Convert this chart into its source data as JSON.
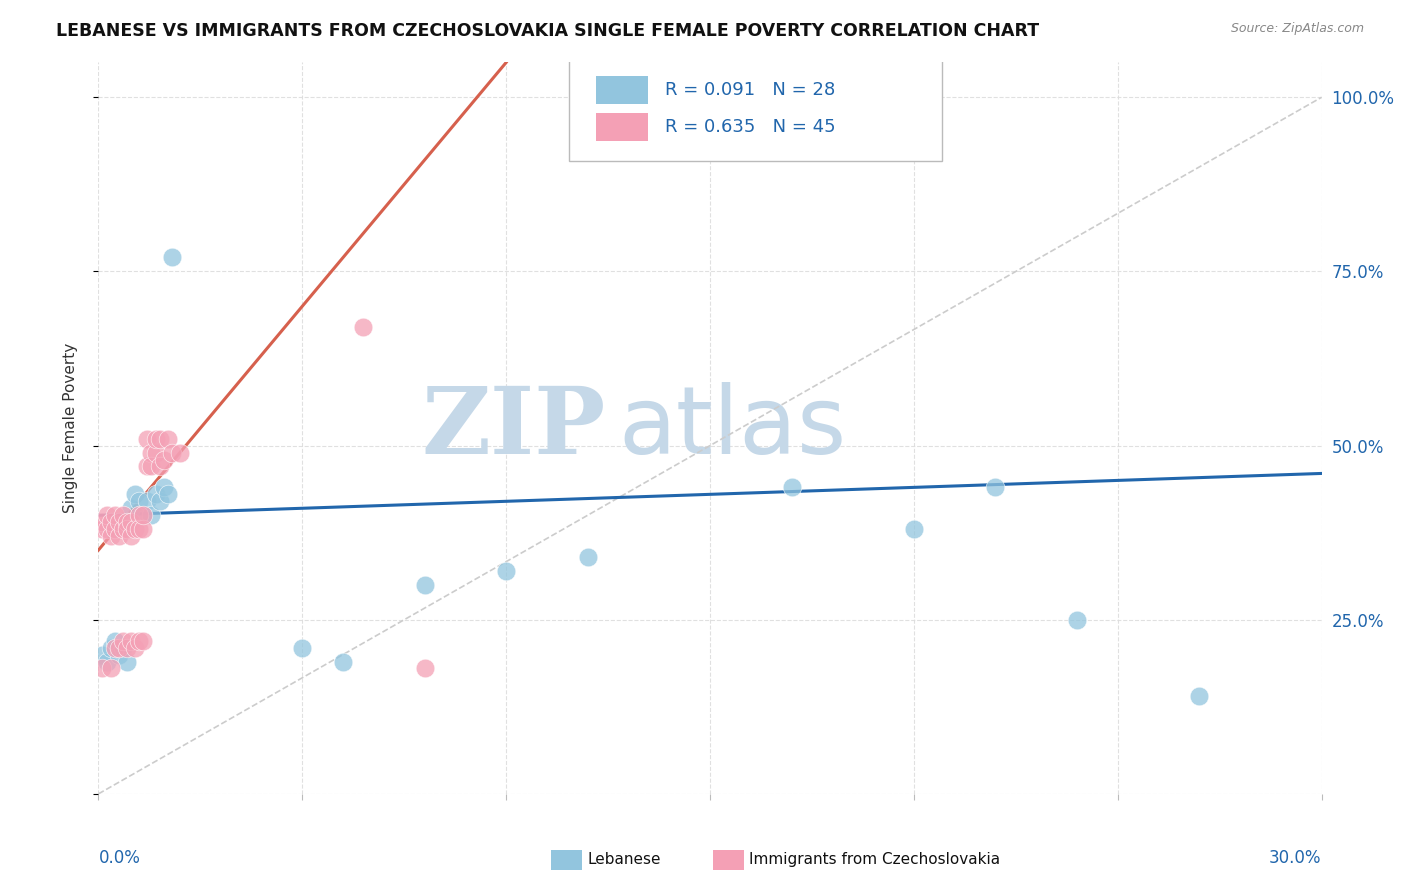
{
  "title": "LEBANESE VS IMMIGRANTS FROM CZECHOSLOVAKIA SINGLE FEMALE POVERTY CORRELATION CHART",
  "source": "Source: ZipAtlas.com",
  "ylabel": "Single Female Poverty",
  "R1": 0.091,
  "N1": 28,
  "R2": 0.635,
  "N2": 45,
  "color_blue": "#92c5de",
  "color_pink": "#f4a0b5",
  "color_blue_line": "#2166ac",
  "color_pink_line": "#d6604d",
  "color_ref_line": "#cccccc",
  "legend_label1": "Lebanese",
  "legend_label2": "Immigrants from Czechoslovakia",
  "xlim": [
    0.0,
    0.3
  ],
  "ylim": [
    0.0,
    1.05
  ],
  "blue_x": [
    0.001,
    0.002,
    0.003,
    0.004,
    0.005,
    0.006,
    0.007,
    0.008,
    0.009,
    0.01,
    0.011,
    0.012,
    0.013,
    0.014,
    0.015,
    0.016,
    0.017,
    0.018,
    0.05,
    0.06,
    0.08,
    0.1,
    0.12,
    0.17,
    0.2,
    0.22,
    0.24,
    0.27
  ],
  "blue_y": [
    0.2,
    0.19,
    0.21,
    0.22,
    0.2,
    0.21,
    0.19,
    0.41,
    0.43,
    0.42,
    0.4,
    0.42,
    0.4,
    0.43,
    0.42,
    0.44,
    0.43,
    0.77,
    0.21,
    0.19,
    0.3,
    0.32,
    0.34,
    0.44,
    0.38,
    0.44,
    0.25,
    0.14
  ],
  "pink_x": [
    0.001,
    0.001,
    0.001,
    0.002,
    0.002,
    0.003,
    0.003,
    0.003,
    0.004,
    0.004,
    0.004,
    0.005,
    0.005,
    0.005,
    0.006,
    0.006,
    0.006,
    0.007,
    0.007,
    0.007,
    0.008,
    0.008,
    0.008,
    0.009,
    0.009,
    0.01,
    0.01,
    0.01,
    0.011,
    0.011,
    0.011,
    0.012,
    0.012,
    0.013,
    0.013,
    0.014,
    0.014,
    0.015,
    0.015,
    0.016,
    0.017,
    0.018,
    0.02,
    0.065,
    0.08
  ],
  "pink_y": [
    0.38,
    0.39,
    0.18,
    0.38,
    0.4,
    0.37,
    0.39,
    0.18,
    0.38,
    0.4,
    0.21,
    0.37,
    0.39,
    0.21,
    0.38,
    0.4,
    0.22,
    0.39,
    0.38,
    0.21,
    0.37,
    0.39,
    0.22,
    0.38,
    0.21,
    0.4,
    0.38,
    0.22,
    0.38,
    0.4,
    0.22,
    0.47,
    0.51,
    0.49,
    0.47,
    0.49,
    0.51,
    0.47,
    0.51,
    0.48,
    0.51,
    0.49,
    0.49,
    0.67,
    0.18
  ],
  "blue_trend_x": [
    0.0,
    0.3
  ],
  "blue_trend_y": [
    0.4,
    0.46
  ],
  "pink_trend_x": [
    0.0,
    0.1
  ],
  "pink_trend_y": [
    0.35,
    1.05
  ],
  "ref_line_x": [
    0.0,
    0.3
  ],
  "ref_line_y": [
    0.0,
    1.0
  ],
  "grid_color": "#dddddd",
  "watermark_zip_color": "#c5d8e8",
  "watermark_atlas_color": "#c5d8e8"
}
